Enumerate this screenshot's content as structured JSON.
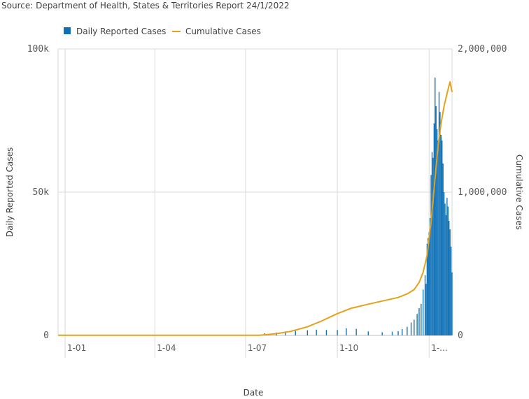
{
  "source_note": "Source: Department of Health, States & Territories Report 24/1/2022",
  "colors": {
    "bars": "#0f70b5",
    "line": "#e3a21a",
    "grid": "#d9d9d9",
    "axis_text": "#595959"
  },
  "chart_data": {
    "type": "bar",
    "legend_position": "top-left",
    "grid": true,
    "xlabel": "Date",
    "ylabel_left": "Daily Reported Cases",
    "ylabel_right": "Cumulative Cases",
    "ylim_left": [
      0,
      100000
    ],
    "ylim_right": [
      0,
      2000000
    ],
    "y_ticks_left": [
      "0",
      "50k",
      "100k"
    ],
    "y_ticks_right": [
      "0",
      "1,000,000",
      "2,000,000"
    ],
    "x_ticks": [
      "1-01",
      "1-04",
      "1-07",
      "1-10",
      "1-..."
    ],
    "x_tick_dates": [
      "2021-01-01",
      "2021-04-01",
      "2021-07-01",
      "2021-10-01",
      "2022-01-01"
    ],
    "x_range": [
      "2020-12-25",
      "2022-01-24"
    ],
    "series": [
      {
        "name": "Daily Reported Cases",
        "type": "bar",
        "axis": "left",
        "dates": [
          "2021-06-20",
          "2021-07-05",
          "2021-07-20",
          "2021-08-01",
          "2021-08-10",
          "2021-08-20",
          "2021-09-01",
          "2021-09-10",
          "2021-09-20",
          "2021-10-01",
          "2021-10-10",
          "2021-10-20",
          "2021-11-01",
          "2021-11-15",
          "2021-11-25",
          "2021-12-01",
          "2021-12-05",
          "2021-12-10",
          "2021-12-14",
          "2021-12-17",
          "2021-12-20",
          "2021-12-22",
          "2021-12-24",
          "2021-12-26",
          "2021-12-28",
          "2021-12-29",
          "2021-12-30",
          "2021-12-31",
          "2022-01-01",
          "2022-01-02",
          "2022-01-03",
          "2022-01-04",
          "2022-01-05",
          "2022-01-06",
          "2022-01-07",
          "2022-01-08",
          "2022-01-09",
          "2022-01-10",
          "2022-01-11",
          "2022-01-12",
          "2022-01-13",
          "2022-01-14",
          "2022-01-15",
          "2022-01-16",
          "2022-01-17",
          "2022-01-18",
          "2022-01-19",
          "2022-01-20",
          "2022-01-21",
          "2022-01-22",
          "2022-01-23",
          "2022-01-24"
        ],
        "values": [
          50,
          200,
          700,
          1000,
          1400,
          1600,
          1800,
          2000,
          1900,
          1900,
          2500,
          2300,
          1400,
          1100,
          1300,
          1500,
          2200,
          3000,
          4500,
          5500,
          7500,
          9500,
          11000,
          16000,
          21000,
          18000,
          32000,
          34000,
          36000,
          41000,
          56000,
          64000,
          62000,
          74000,
          90000,
          80000,
          72000,
          68000,
          85000,
          78000,
          70000,
          68000,
          60000,
          50000,
          46000,
          42000,
          48000,
          45000,
          40000,
          37000,
          31000,
          22000
        ]
      },
      {
        "name": "Cumulative Cases",
        "type": "line",
        "axis": "right",
        "dates": [
          "2020-12-25",
          "2021-06-20",
          "2021-07-15",
          "2021-08-01",
          "2021-08-15",
          "2021-09-01",
          "2021-09-15",
          "2021-10-01",
          "2021-10-15",
          "2021-11-01",
          "2021-11-15",
          "2021-12-01",
          "2021-12-10",
          "2021-12-17",
          "2021-12-22",
          "2021-12-26",
          "2021-12-30",
          "2022-01-03",
          "2022-01-07",
          "2022-01-10",
          "2022-01-13",
          "2022-01-16",
          "2022-01-19",
          "2022-01-22",
          "2022-01-24"
        ],
        "values": [
          1000,
          1000,
          1000,
          12000,
          28000,
          60000,
          100000,
          152000,
          190000,
          218000,
          240000,
          265000,
          290000,
          320000,
          370000,
          440000,
          560000,
          800000,
          1100000,
          1320000,
          1480000,
          1600000,
          1690000,
          1770000,
          1700000
        ]
      }
    ]
  }
}
